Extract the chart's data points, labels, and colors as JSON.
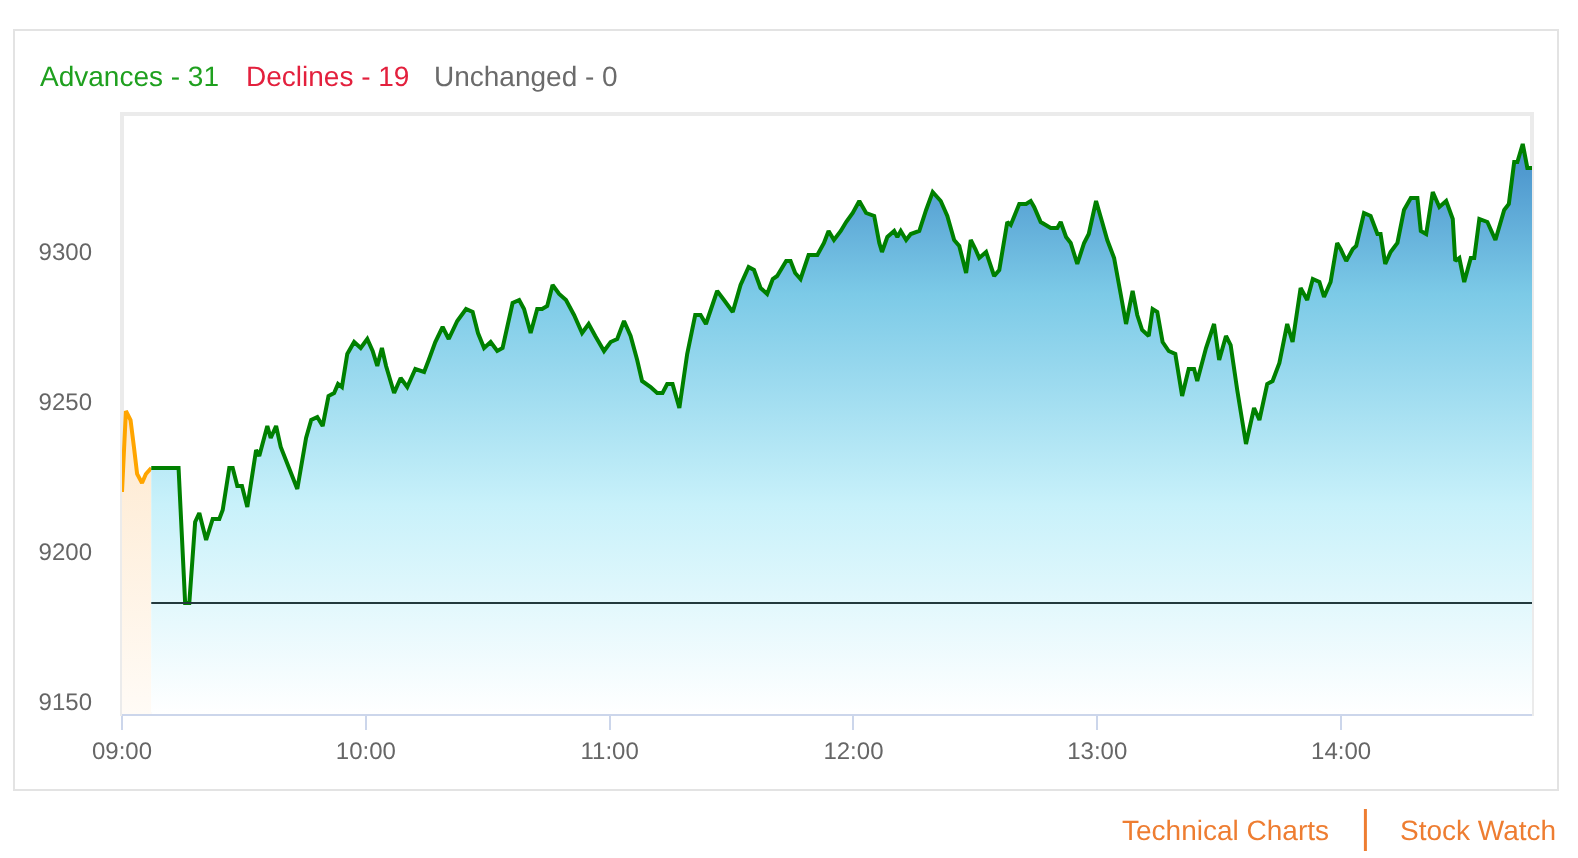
{
  "chart_data": {
    "type": "area",
    "xlim": [
      9,
      14.783
    ],
    "ylim": [
      9146,
      9346
    ],
    "xticks": [
      {
        "value": 9,
        "label": "09:00"
      },
      {
        "value": 10,
        "label": "10:00"
      },
      {
        "value": 11,
        "label": "11:00"
      },
      {
        "value": 12,
        "label": "12:00"
      },
      {
        "value": 13,
        "label": "13:00"
      },
      {
        "value": 14,
        "label": "14:00"
      }
    ],
    "yticks": [
      9150,
      9200,
      9250,
      9300
    ],
    "ref_lines": [
      {
        "axis": "y",
        "value": 9183,
        "color": "#23393d"
      }
    ],
    "annotations": [
      "Advances - 31",
      "Declines - 19",
      "Unchanged - 0",
      "Technical Charts",
      "Stock Watch"
    ],
    "series": [
      {
        "color": "#ffa500",
        "x": [
          9.0,
          9.016,
          9.035,
          9.049,
          9.062,
          9.082,
          9.098,
          9.12
        ],
        "values": [
          9220,
          9247,
          9244,
          9235,
          9226,
          9223,
          9226,
          9228
        ]
      },
      {
        "color": "#008000",
        "x": [
          9.12,
          9.232,
          9.259,
          9.276,
          9.3,
          9.317,
          9.345,
          9.372,
          9.399,
          9.413,
          9.44,
          9.454,
          9.473,
          9.492,
          9.514,
          9.55,
          9.563,
          9.596,
          9.61,
          9.632,
          9.651,
          9.719,
          9.755,
          9.776,
          9.801,
          9.823,
          9.847,
          9.87,
          9.886,
          9.902,
          9.924,
          9.952,
          9.979,
          10.006,
          10.028,
          10.047,
          10.066,
          10.083,
          10.116,
          10.143,
          10.17,
          10.203,
          10.239,
          10.258,
          10.285,
          10.315,
          10.34,
          10.375,
          10.411,
          10.438,
          10.46,
          10.485,
          10.512,
          10.539,
          10.561,
          10.58,
          10.602,
          10.629,
          10.649,
          10.676,
          10.703,
          10.723,
          10.744,
          10.766,
          10.793,
          10.821,
          10.854,
          10.887,
          10.914,
          10.941,
          10.977,
          11.004,
          11.031,
          11.059,
          11.086,
          11.113,
          11.133,
          11.168,
          11.195,
          11.217,
          11.236,
          11.258,
          11.286,
          11.318,
          11.351,
          11.373,
          11.395,
          11.441,
          11.469,
          11.505,
          11.537,
          11.57,
          11.592,
          11.619,
          11.646,
          11.669,
          11.687,
          11.724,
          11.742,
          11.761,
          11.783,
          11.816,
          11.852,
          11.879,
          11.898,
          11.92,
          11.948,
          11.97,
          11.997,
          12.024,
          12.052,
          12.085,
          12.106,
          12.117,
          12.139,
          12.167,
          12.18,
          12.194,
          12.216,
          12.235,
          12.27,
          12.298,
          12.325,
          12.358,
          12.385,
          12.413,
          12.434,
          12.462,
          12.481,
          12.5,
          12.516,
          12.544,
          12.577,
          12.598,
          12.631,
          12.645,
          12.68,
          12.708,
          12.727,
          12.741,
          12.768,
          12.809,
          12.836,
          12.85,
          12.872,
          12.891,
          12.918,
          12.946,
          12.965,
          12.995,
          13.02,
          13.041,
          13.069,
          13.096,
          13.118,
          13.145,
          13.164,
          13.184,
          13.211,
          13.227,
          13.246,
          13.268,
          13.293,
          13.32,
          13.348,
          13.375,
          13.397,
          13.41,
          13.446,
          13.479,
          13.5,
          13.528,
          13.547,
          13.574,
          13.61,
          13.643,
          13.665,
          13.697,
          13.719,
          13.747,
          13.779,
          13.801,
          13.834,
          13.861,
          13.884,
          13.911,
          13.93,
          13.957,
          13.984,
          13.998,
          14.021,
          14.048,
          14.062,
          14.094,
          14.121,
          14.149,
          14.162,
          14.181,
          14.203,
          14.231,
          14.258,
          14.286,
          14.313,
          14.327,
          14.349,
          14.376,
          14.403,
          14.431,
          14.458,
          14.468,
          14.485,
          14.505,
          14.532,
          14.546,
          14.567,
          14.6,
          14.633,
          14.669,
          14.688,
          14.71,
          14.723,
          14.745,
          14.764,
          14.783
        ],
        "values": [
          9228,
          9228,
          9183,
          9183,
          9210,
          9213,
          9204,
          9211,
          9211,
          9214,
          9228,
          9228,
          9222,
          9222,
          9215,
          9234,
          9232,
          9242,
          9238,
          9242,
          9235,
          9221,
          9238,
          9244,
          9245,
          9242,
          9252,
          9253,
          9256,
          9255,
          9266,
          9270,
          9268,
          9271,
          9267,
          9262,
          9268,
          9262,
          9253,
          9258,
          9255,
          9261,
          9260,
          9264,
          9270,
          9275,
          9271,
          9277,
          9281,
          9280,
          9273,
          9268,
          9270,
          9267,
          9268,
          9275,
          9283,
          9284,
          9281,
          9273,
          9281,
          9281,
          9282,
          9289,
          9286,
          9284,
          9279,
          9273,
          9276,
          9272,
          9267,
          9270,
          9271,
          9277,
          9272,
          9264,
          9257,
          9255,
          9253,
          9253,
          9256,
          9256,
          9248,
          9266,
          9279,
          9279,
          9276,
          9287,
          9284,
          9280,
          9289,
          9295,
          9294,
          9288,
          9286,
          9291,
          9292,
          9297,
          9297,
          9293,
          9291,
          9299,
          9299,
          9303,
          9307,
          9304,
          9307,
          9310,
          9313,
          9317,
          9313,
          9312,
          9303,
          9300,
          9305,
          9307,
          9305,
          9307,
          9304,
          9306,
          9307,
          9314,
          9320,
          9317,
          9312,
          9304,
          9302,
          9293,
          9304,
          9301,
          9298,
          9300,
          9292,
          9294,
          9310,
          9309,
          9316,
          9316,
          9317,
          9315,
          9310,
          9308,
          9308,
          9310,
          9305,
          9303,
          9296,
          9303,
          9306,
          9317,
          9310,
          9304,
          9298,
          9286,
          9276,
          9287,
          9279,
          9274,
          9272,
          9281,
          9280,
          9270,
          9267,
          9266,
          9252,
          9261,
          9261,
          9257,
          9268,
          9276,
          9264,
          9272,
          9269,
          9254,
          9236,
          9248,
          9244,
          9256,
          9257,
          9263,
          9276,
          9270,
          9288,
          9284,
          9291,
          9290,
          9285,
          9290,
          9303,
          9301,
          9297,
          9301,
          9302,
          9313,
          9312,
          9306,
          9306,
          9296,
          9300,
          9303,
          9314,
          9318,
          9318,
          9307,
          9306,
          9320,
          9315,
          9317,
          9311,
          9297,
          9298,
          9290,
          9298,
          9298,
          9311,
          9310,
          9304,
          9314,
          9316,
          9330,
          9330,
          9336,
          9328,
          9328
        ]
      }
    ]
  }
}
